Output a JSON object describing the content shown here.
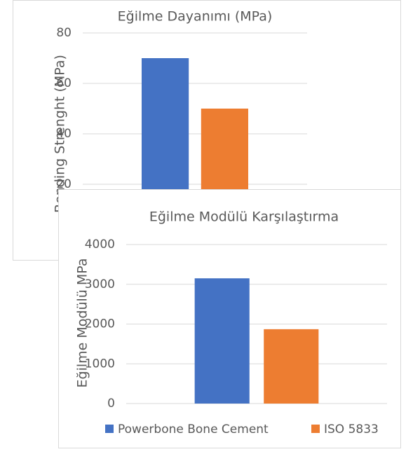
{
  "chart_data": [
    {
      "type": "bar",
      "title": "Eğilme Dayanımı (MPa)",
      "y_label": "Bending Strenght (MPa)",
      "series": [
        {
          "color": "#4472c4",
          "values": [
            70
          ]
        },
        {
          "color": "#ed7d31",
          "values": [
            50
          ]
        }
      ],
      "ylim": [
        0,
        80
      ],
      "yticks": [
        20,
        40,
        60,
        80
      ],
      "grid": true
    },
    {
      "type": "bar",
      "title": "Eğilme Modülü Karşılaştırma",
      "y_label": "Eğilme Modülü MPa",
      "series": [
        {
          "name": "Powerbone Bone Cement",
          "color": "#4472c4",
          "values": [
            3150
          ]
        },
        {
          "name": "ISO 5833",
          "color": "#ed7d31",
          "values": [
            1870
          ]
        }
      ],
      "ylim": [
        0,
        4000
      ],
      "yticks": [
        0,
        1000,
        2000,
        3000,
        4000
      ],
      "grid": true,
      "legend": "bottom"
    }
  ]
}
